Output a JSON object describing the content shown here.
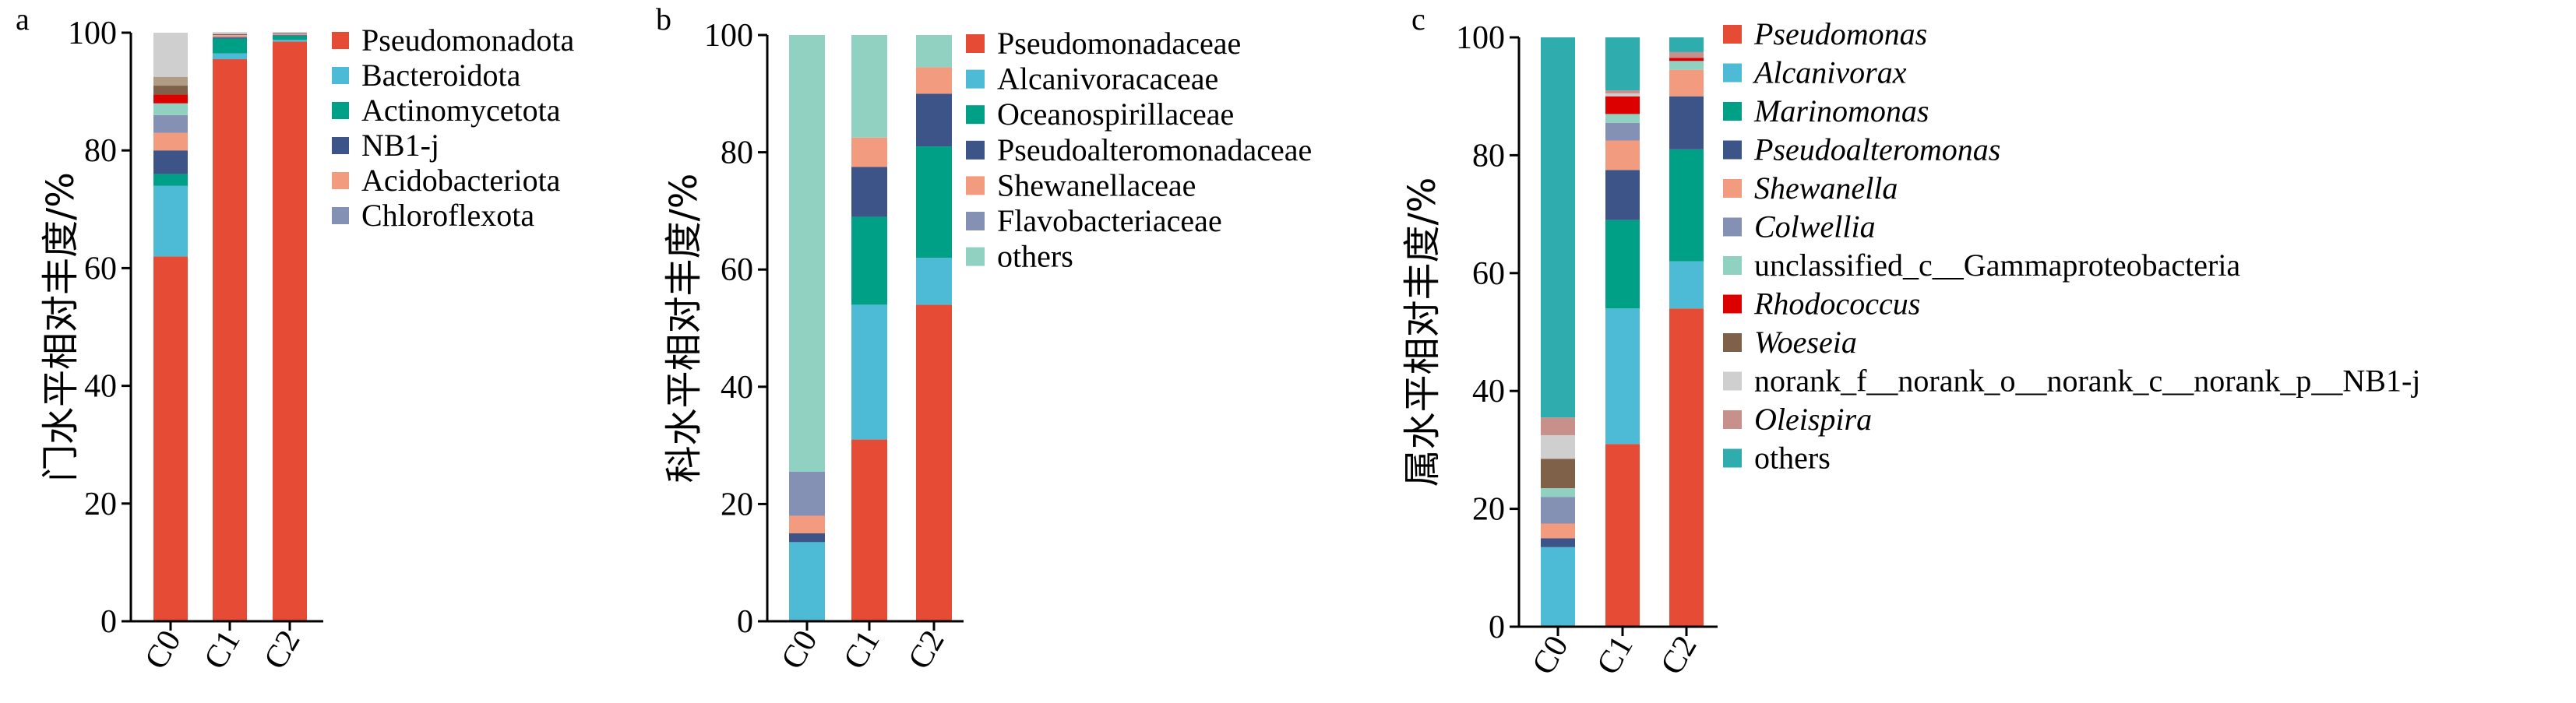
{
  "colors": {
    "red": "#E64B35",
    "lightblue": "#4DBBD5",
    "teal": "#00A087",
    "navy": "#3C5488",
    "salmon": "#F39B7F",
    "greyblue": "#8491B4",
    "mint": "#91D1C2",
    "brightred": "#DC0000",
    "brown": "#7E6148",
    "lightgrey": "#CFCFCF",
    "rosybrown": "#C8908A",
    "darkteal": "#2EACAE"
  },
  "chart_data": [
    {
      "type": "bar",
      "stacked": true,
      "panel_label": "a",
      "ylabel": "门水平相对丰度/%",
      "ylim": [
        0,
        100
      ],
      "yticks": [
        0,
        20,
        40,
        60,
        80,
        100
      ],
      "categories": [
        "C0",
        "C1",
        "C2"
      ],
      "legend_position": "right",
      "series": [
        {
          "name": "Pseudomonadota",
          "color": "#E64B35",
          "values": [
            62,
            95.5,
            98.5
          ]
        },
        {
          "name": "Bacteroidota",
          "color": "#4DBBD5",
          "values": [
            12,
            1,
            0.3
          ]
        },
        {
          "name": "Actinomycetota",
          "color": "#00A087",
          "values": [
            2,
            2.5,
            0.7
          ]
        },
        {
          "name": "NB1-j",
          "color": "#3C5488",
          "values": [
            4,
            0.2,
            0.1
          ]
        },
        {
          "name": "Acidobacteriota",
          "color": "#F39B7F",
          "values": [
            3,
            0.2,
            0.1
          ]
        },
        {
          "name": "Chloroflexota",
          "color": "#8491B4",
          "values": [
            3,
            0.1,
            0.1
          ]
        },
        {
          "name": "",
          "color": "#91D1C2",
          "values": [
            2,
            0.1,
            0.05
          ]
        },
        {
          "name": "",
          "color": "#DC0000",
          "values": [
            1.5,
            0.1,
            0.05
          ]
        },
        {
          "name": "",
          "color": "#7E6148",
          "values": [
            1.5,
            0.05,
            0.05
          ]
        },
        {
          "name": "",
          "color": "#B09C85",
          "values": [
            1.5,
            0.05,
            0.05
          ]
        },
        {
          "name": "",
          "color": "#CFCFCF",
          "values": [
            7.5,
            0.3,
            0.1
          ]
        }
      ],
      "legend": [
        "Pseudomonadota",
        "Bacteroidota",
        "Actinomycetota",
        "NB1-j",
        "Acidobacteriota",
        "Chloroflexota"
      ],
      "legend_italic": []
    },
    {
      "type": "bar",
      "stacked": true,
      "panel_label": "b",
      "ylabel": "科水平相对丰度/%",
      "ylim": [
        0,
        100
      ],
      "yticks": [
        0,
        20,
        40,
        60,
        80,
        100
      ],
      "categories": [
        "C0",
        "C1",
        "C2"
      ],
      "legend_position": "right",
      "series": [
        {
          "name": "Pseudomonadaceae",
          "color": "#E64B35",
          "values": [
            0,
            31,
            54
          ]
        },
        {
          "name": "Alcanivoracaceae",
          "color": "#4DBBD5",
          "values": [
            13.5,
            23,
            8
          ]
        },
        {
          "name": "Oceanospirillaceae",
          "color": "#00A087",
          "values": [
            0,
            15,
            19
          ]
        },
        {
          "name": "Pseudoalteromonadaceae",
          "color": "#3C5488",
          "values": [
            1.5,
            8.5,
            9
          ]
        },
        {
          "name": "Shewanellaceae",
          "color": "#F39B7F",
          "values": [
            3,
            5,
            4.5
          ]
        },
        {
          "name": "Flavobacteriaceae",
          "color": "#8491B4",
          "values": [
            7.5,
            0,
            0
          ]
        },
        {
          "name": "others",
          "color": "#91D1C2",
          "values": [
            74.5,
            17.5,
            5.5
          ]
        }
      ],
      "legend": [
        "Pseudomonadaceae",
        "Alcanivoracaceae",
        "Oceanospirillaceae",
        "Pseudoalteromonadaceae",
        "Shewanellaceae",
        "Flavobacteriaceae",
        "others"
      ],
      "legend_italic": []
    },
    {
      "type": "bar",
      "stacked": true,
      "panel_label": "c",
      "ylabel": "属水平相对丰度/%",
      "ylim": [
        0,
        100
      ],
      "yticks": [
        0,
        20,
        40,
        60,
        80,
        100
      ],
      "categories": [
        "C0",
        "C1",
        "C2"
      ],
      "legend_position": "right",
      "series": [
        {
          "name": "Pseudomonas",
          "color": "#E64B35",
          "values": [
            0,
            31,
            54
          ]
        },
        {
          "name": "Alcanivorax",
          "color": "#4DBBD5",
          "values": [
            13.5,
            23,
            8
          ]
        },
        {
          "name": "Marinomonas",
          "color": "#00A087",
          "values": [
            0,
            15,
            19
          ]
        },
        {
          "name": "Pseudoalteromonas",
          "color": "#3C5488",
          "values": [
            1.5,
            8.5,
            9
          ]
        },
        {
          "name": "Shewanella",
          "color": "#F39B7F",
          "values": [
            2.5,
            5,
            4.5
          ]
        },
        {
          "name": "Colwellia",
          "color": "#8491B4",
          "values": [
            4.5,
            3,
            0
          ]
        },
        {
          "name": "unclassified_c__Gammaproteobacteria",
          "color": "#91D1C2",
          "values": [
            1.5,
            1.5,
            1.5
          ]
        },
        {
          "name": "Rhodococcus",
          "color": "#DC0000",
          "values": [
            0,
            3,
            0.5
          ]
        },
        {
          "name": "Woeseia",
          "color": "#7E6148",
          "values": [
            5,
            0,
            0
          ]
        },
        {
          "name": "norank_f__norank_o__norank_c__norank_p__NB1-j",
          "color": "#CFCFCF",
          "values": [
            4,
            0.5,
            0
          ]
        },
        {
          "name": "Oleispira",
          "color": "#C8908A",
          "values": [
            3,
            0.5,
            1
          ]
        },
        {
          "name": "others",
          "color": "#2EACAE",
          "values": [
            64.5,
            9,
            2.5
          ]
        }
      ],
      "legend": [
        "Pseudomonas",
        "Alcanivorax",
        "Marinomonas",
        "Pseudoalteromonas",
        "Shewanella",
        "Colwellia",
        "unclassified_c__Gammaproteobacteria",
        "Rhodococcus",
        "Woeseia",
        "norank_f__norank_o__norank_c__norank_p__NB1-j",
        "Oleispira",
        "others"
      ],
      "legend_italic": [
        "Pseudomonas",
        "Alcanivorax",
        "Marinomonas",
        "Pseudoalteromonas",
        "Shewanella",
        "Colwellia",
        "Rhodococcus",
        "Woeseia",
        "Oleispira"
      ]
    }
  ]
}
